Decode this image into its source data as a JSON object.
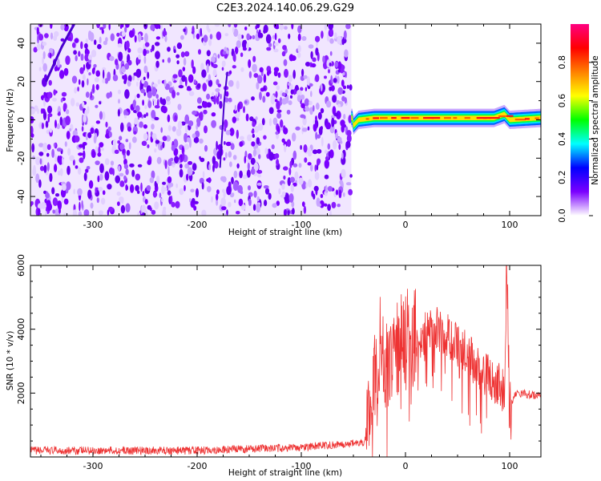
{
  "title": "C2E3.2024.140.06.29.G29",
  "chart_data": [
    {
      "type": "heatmap",
      "xlabel": "Height of straight line (km)",
      "ylabel": "Frequency (Hz)",
      "xlim": [
        -360,
        130
      ],
      "ylim": [
        -50,
        50
      ],
      "xticks": [
        -300,
        -200,
        -100,
        0,
        100
      ],
      "yticks": [
        -40,
        -20,
        0,
        20,
        40
      ],
      "colorbar": {
        "label": "Normalized spectral amplitude",
        "range": [
          0,
          1
        ],
        "ticks": [
          "0.0",
          "0.2",
          "0.4",
          "0.6",
          "0.8"
        ],
        "colors": [
          "#ffffff",
          "#7b00ff",
          "#0000ff",
          "#00ffff",
          "#00ff00",
          "#ffff00",
          "#ff8000",
          "#ff0000",
          "#ff0080"
        ]
      },
      "noise_region_x": [
        -360,
        -52
      ],
      "signal_band": {
        "x": [
          -52,
          130
        ],
        "center_frequency_hz": 1,
        "points": [
          {
            "x": -50,
            "f": -3
          },
          {
            "x": -45,
            "f": 0
          },
          {
            "x": -30,
            "f": 1
          },
          {
            "x": 0,
            "f": 1
          },
          {
            "x": 50,
            "f": 1
          },
          {
            "x": 85,
            "f": 1
          },
          {
            "x": 95,
            "f": 3
          },
          {
            "x": 100,
            "f": 0
          },
          {
            "x": 130,
            "f": 1
          }
        ]
      },
      "grid": false
    },
    {
      "type": "line",
      "xlabel": "Height of straight line (km)",
      "ylabel": "SNR (10 * v/v)",
      "xlim": [
        -360,
        130
      ],
      "ylim": [
        0,
        6000
      ],
      "xticks": [
        -300,
        -200,
        -100,
        0,
        100
      ],
      "yticks": [
        2000,
        4000,
        6000
      ],
      "series": [
        {
          "color": "#ee3333",
          "x": [
            -360,
            -300,
            -250,
            -200,
            -150,
            -100,
            -60,
            -40,
            -35,
            -30,
            -25,
            -20,
            -15,
            -10,
            -5,
            0,
            10,
            20,
            30,
            40,
            50,
            60,
            70,
            80,
            90,
            95,
            97,
            100,
            105,
            110,
            120,
            130
          ],
          "y": [
            200,
            200,
            200,
            200,
            250,
            300,
            400,
            450,
            1000,
            2500,
            3500,
            3000,
            3200,
            3400,
            3600,
            3800,
            3700,
            3900,
            4000,
            3800,
            3500,
            3200,
            2800,
            2500,
            2300,
            2000,
            6000,
            1500,
            2000,
            2000,
            1950,
            1900
          ]
        }
      ],
      "grid": false
    }
  ]
}
